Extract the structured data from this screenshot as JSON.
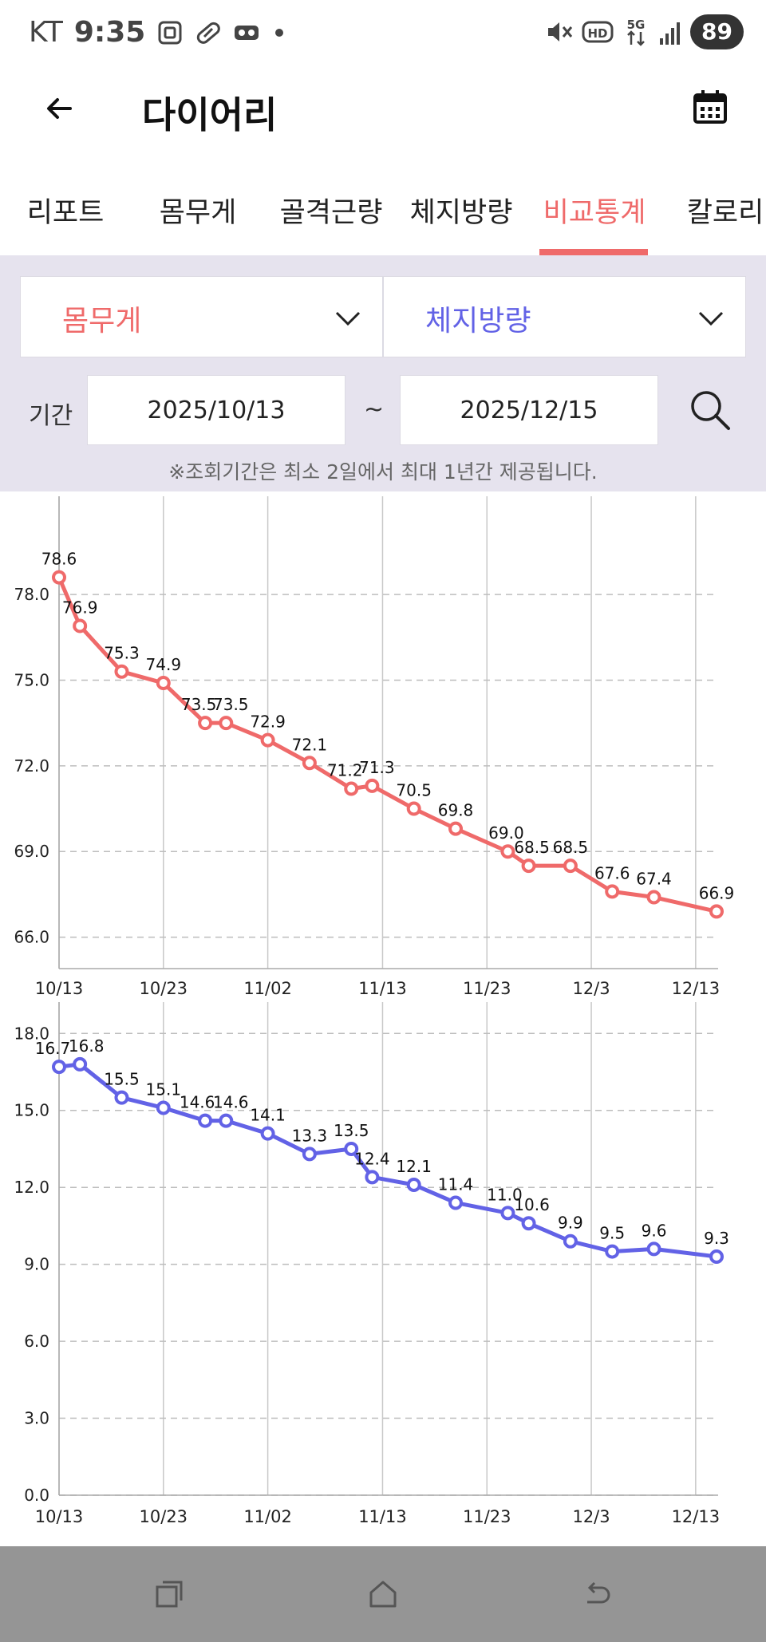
{
  "status_bar": {
    "carrier": "KT",
    "time": "9:35",
    "battery": "89",
    "left_icons": [
      "screenshot-icon",
      "pill-icon",
      "voicemail-icon",
      "dot-icon"
    ],
    "right_icons": [
      "mute-icon",
      "hd-icon",
      "5g-icon",
      "signal-icon"
    ]
  },
  "header": {
    "title": "다이어리",
    "back_icon": "arrow-left-icon",
    "calendar_icon": "calendar-icon"
  },
  "tabs": [
    {
      "label": "리포트",
      "active": false
    },
    {
      "label": "몸무게",
      "active": false
    },
    {
      "label": "골격근량",
      "active": false
    },
    {
      "label": "체지방량",
      "active": false
    },
    {
      "label": "비교통계",
      "active": true
    },
    {
      "label": "칼로리",
      "active": false
    }
  ],
  "filter": {
    "select_a": "몸무게",
    "select_b": "체지방량",
    "period_label": "기간",
    "start_date": "2025/10/13",
    "separator": "~",
    "end_date": "2025/12/15",
    "notice": "※조회기간은 최소 2일에서 최대 1년간 제공됩니다."
  },
  "colors": {
    "accent": "#ef6a6a",
    "secondary": "#6262e6",
    "panel": "#e6e3ee",
    "nav": "#959595"
  },
  "chart_data": [
    {
      "type": "line",
      "series": [
        {
          "x": [
            "10/13",
            "10/15",
            "10/19",
            "10/23",
            "10/27",
            "10/29",
            "11/02",
            "11/06",
            "11/10",
            "11/12",
            "11/16",
            "11/20",
            "11/25",
            "11/27",
            "12/01",
            "12/05",
            "12/09",
            "12/15"
          ],
          "values": [
            78.6,
            76.9,
            75.3,
            74.9,
            73.5,
            73.5,
            72.9,
            72.1,
            71.2,
            71.3,
            70.5,
            69.8,
            69.0,
            68.5,
            68.5,
            67.6,
            67.4,
            66.9
          ],
          "labels": [
            "78.6",
            "76.9",
            "75.3",
            "74.9",
            "73.5",
            "73.5",
            "72.9",
            "72.1",
            "71.2",
            "71.3",
            "70.5",
            "69.8",
            "69.0",
            "68.5",
            "68.5",
            "67.6",
            "67.4",
            "66.9"
          ]
        }
      ],
      "x_ticks": [
        "10/13",
        "10/23",
        "11/02",
        "11/13",
        "11/23",
        "12/3",
        "12/13"
      ],
      "y_ticks": [
        "66.0",
        "69.0",
        "72.0",
        "75.0",
        "78.0"
      ],
      "ylim": [
        64.9,
        80.6
      ],
      "grid": true,
      "color": "#ef6a6a"
    },
    {
      "type": "line",
      "series": [
        {
          "x": [
            "10/13",
            "10/15",
            "10/19",
            "10/23",
            "10/27",
            "10/29",
            "11/02",
            "11/06",
            "11/10",
            "11/12",
            "11/16",
            "11/20",
            "11/25",
            "11/27",
            "12/01",
            "12/05",
            "12/09",
            "12/15"
          ],
          "values": [
            16.7,
            16.8,
            15.5,
            15.1,
            14.6,
            14.6,
            14.1,
            13.3,
            13.5,
            12.4,
            12.1,
            11.4,
            11.0,
            10.6,
            9.9,
            9.5,
            9.6,
            9.3
          ],
          "labels": [
            "16.7",
            "16.8",
            "15.5",
            "15.1",
            "14.6",
            "14.6",
            "14.1",
            "13.3",
            "13.5",
            "12.4",
            "12.1",
            "11.4",
            "11.0",
            "10.6",
            "9.9",
            "9.5",
            "9.6",
            "9.3"
          ]
        }
      ],
      "x_ticks": [
        "10/13",
        "10/23",
        "11/02",
        "11/13",
        "11/23",
        "12/3",
        "12/13"
      ],
      "y_ticks": [
        "0.0",
        "3.0",
        "6.0",
        "9.0",
        "12.0",
        "15.0",
        "18.0"
      ],
      "ylim": [
        0,
        18.6
      ],
      "grid": true,
      "color": "#6262e6"
    }
  ],
  "nav": {
    "recents_icon": "recents-icon",
    "home_icon": "home-icon",
    "back_icon": "back-icon"
  }
}
